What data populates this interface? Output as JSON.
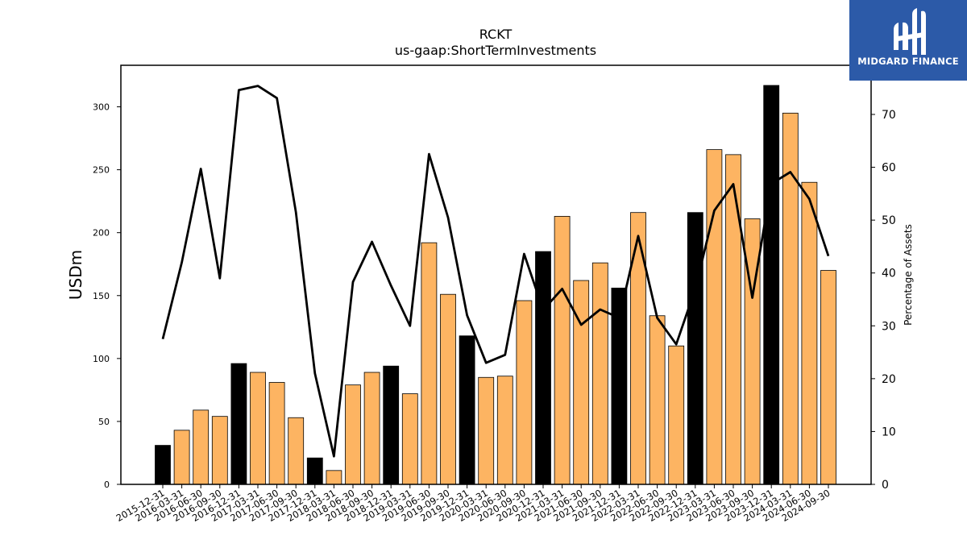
{
  "chart_data": {
    "type": "bar",
    "title": "RCKT",
    "subtitle": "us-gaap:ShortTermInvestments",
    "ylabel": "USDm",
    "y2label": "Percentage of Assets",
    "ylim": [
      0,
      333
    ],
    "y2lim": [
      0,
      79.3
    ],
    "yticks": [
      0,
      50,
      100,
      150,
      200,
      250,
      300
    ],
    "y2ticks": [
      0,
      10,
      20,
      30,
      40,
      50,
      60,
      70
    ],
    "categories": [
      "2015-12-31",
      "2016-03-31",
      "2016-06-30",
      "2016-09-30",
      "2016-12-31",
      "2017-03-31",
      "2017-06-30",
      "2017-09-30",
      "2017-12-31",
      "2018-03-31",
      "2018-06-30",
      "2018-09-30",
      "2018-12-31",
      "2019-03-31",
      "2019-06-30",
      "2019-09-30",
      "2019-12-31",
      "2020-03-31",
      "2020-06-30",
      "2020-09-30",
      "2020-12-31",
      "2021-03-31",
      "2021-06-30",
      "2021-09-30",
      "2021-12-31",
      "2022-03-31",
      "2022-06-30",
      "2022-09-30",
      "2022-12-31",
      "2023-03-31",
      "2023-06-30",
      "2023-09-30",
      "2023-12-31",
      "2024-03-31",
      "2024-06-30",
      "2024-09-30"
    ],
    "series": [
      {
        "type": "bar",
        "values": [
          31,
          43,
          59,
          54,
          96,
          89,
          81,
          53,
          21,
          11,
          79,
          89,
          94,
          72,
          192,
          151,
          118,
          85,
          86,
          146,
          185,
          213,
          162,
          176,
          156,
          216,
          134,
          110,
          216,
          266,
          262,
          211,
          317,
          295,
          240,
          170
        ],
        "colors": {
          "annual": "#000000",
          "quarterly": "#fdb462"
        }
      },
      {
        "type": "line",
        "axis": "right",
        "values": [
          27.5,
          42,
          59.7,
          39,
          74.6,
          75.4,
          73.1,
          51.5,
          21,
          5.3,
          38.3,
          45.9,
          37.6,
          30,
          62.5,
          50.5,
          32,
          23,
          24.5,
          43.6,
          33,
          37,
          30.2,
          33.1,
          31.5,
          47,
          31.5,
          26.5,
          37,
          51.8,
          56.8,
          35.3,
          56.9,
          59.1,
          54,
          43.2
        ],
        "color": "#000000"
      }
    ],
    "annual_categories": [
      "2015-12-31",
      "2016-12-31",
      "2017-12-31",
      "2018-12-31",
      "2019-12-31",
      "2020-12-31",
      "2021-12-31",
      "2022-12-31",
      "2023-12-31"
    ]
  },
  "logo": {
    "text": "MIDGARD FINANCE",
    "bg": "#2c5aa8"
  }
}
